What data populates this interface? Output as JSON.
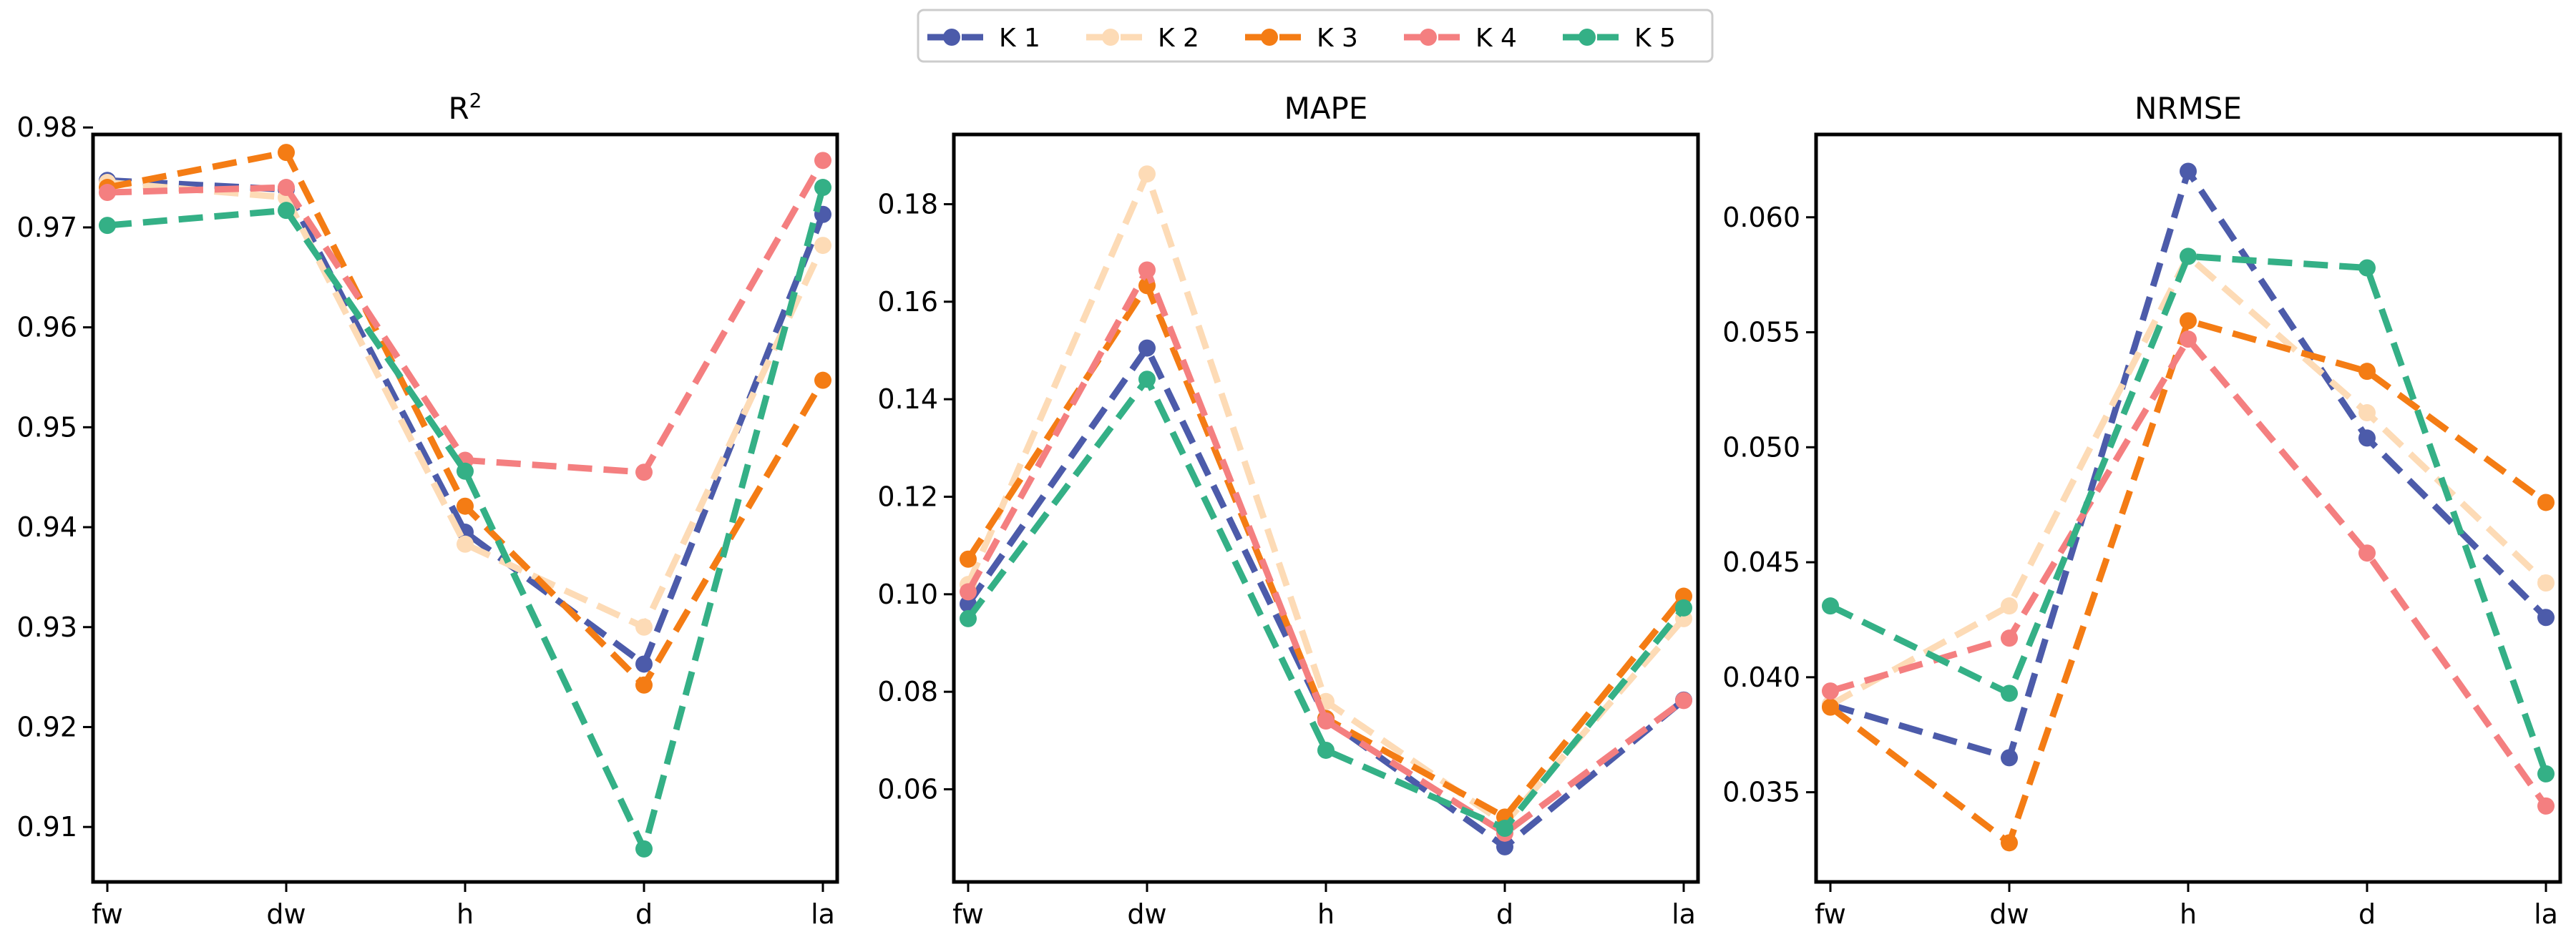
{
  "legend": {
    "location": "top-center",
    "entries": [
      {
        "label": "K 1",
        "color": "#4c5baa"
      },
      {
        "label": "K 2",
        "color": "#fddbb6"
      },
      {
        "label": "K 3",
        "color": "#f47c14"
      },
      {
        "label": "K 4",
        "color": "#f47f80"
      },
      {
        "label": "K 5",
        "color": "#34b086"
      }
    ]
  },
  "chart_data": [
    {
      "type": "line",
      "title_base": "R",
      "title_sup": "2",
      "categories": [
        "fw",
        "dw",
        "h",
        "d",
        "la"
      ],
      "ylim": [
        0.9045,
        0.9793
      ],
      "yticks": [
        0.91,
        0.92,
        0.93,
        0.94,
        0.95,
        0.96,
        0.97,
        0.98
      ],
      "ytick_labels": [
        "0.91",
        "0.92",
        "0.93",
        "0.94",
        "0.95",
        "0.96",
        "0.97",
        "0.98"
      ],
      "series": [
        {
          "name": "K 1",
          "values": [
            0.9747,
            0.9738,
            0.9395,
            0.9263,
            0.9713
          ]
        },
        {
          "name": "K 2",
          "values": [
            0.9745,
            0.973,
            0.9383,
            0.93,
            0.9682
          ]
        },
        {
          "name": "K 3",
          "values": [
            0.974,
            0.9775,
            0.9421,
            0.9242,
            0.9547
          ]
        },
        {
          "name": "K 4",
          "values": [
            0.9735,
            0.974,
            0.9467,
            0.9455,
            0.9767
          ]
        },
        {
          "name": "K 5",
          "values": [
            0.9702,
            0.9717,
            0.9456,
            0.9078,
            0.974
          ]
        }
      ]
    },
    {
      "type": "line",
      "title": "MAPE",
      "categories": [
        "fw",
        "dw",
        "h",
        "d",
        "la"
      ],
      "ylim": [
        0.041,
        0.1943
      ],
      "yticks": [
        0.06,
        0.08,
        0.1,
        0.12,
        0.14,
        0.16,
        0.18
      ],
      "ytick_labels": [
        "0.06",
        "0.08",
        "0.10",
        "0.12",
        "0.14",
        "0.16",
        "0.18"
      ],
      "series": [
        {
          "name": "K 1",
          "values": [
            0.098,
            0.1505,
            0.0745,
            0.0482,
            0.0783
          ]
        },
        {
          "name": "K 2",
          "values": [
            0.102,
            0.1862,
            0.078,
            0.053,
            0.095
          ]
        },
        {
          "name": "K 3",
          "values": [
            0.1072,
            0.1633,
            0.0745,
            0.0543,
            0.0996
          ]
        },
        {
          "name": "K 4",
          "values": [
            0.1005,
            0.1665,
            0.074,
            0.051,
            0.0782
          ]
        },
        {
          "name": "K 5",
          "values": [
            0.095,
            0.1441,
            0.068,
            0.052,
            0.0972
          ]
        }
      ]
    },
    {
      "type": "line",
      "title": "NRMSE",
      "categories": [
        "fw",
        "dw",
        "h",
        "d",
        "la"
      ],
      "ylim": [
        0.0311,
        0.0636
      ],
      "yticks": [
        0.035,
        0.04,
        0.045,
        0.05,
        0.055,
        0.06
      ],
      "ytick_labels": [
        "0.035",
        "0.040",
        "0.045",
        "0.050",
        "0.055",
        "0.060"
      ],
      "series": [
        {
          "name": "K 1",
          "values": [
            0.0388,
            0.0365,
            0.062,
            0.0504,
            0.0426
          ]
        },
        {
          "name": "K 2",
          "values": [
            0.0388,
            0.0431,
            0.0583,
            0.0515,
            0.0441
          ]
        },
        {
          "name": "K 3",
          "values": [
            0.0387,
            0.0328,
            0.0555,
            0.0533,
            0.0476
          ]
        },
        {
          "name": "K 4",
          "values": [
            0.0394,
            0.0417,
            0.0547,
            0.0454,
            0.0344
          ]
        },
        {
          "name": "K 5",
          "values": [
            0.0431,
            0.0393,
            0.0583,
            0.0578,
            0.0358
          ]
        }
      ]
    }
  ]
}
